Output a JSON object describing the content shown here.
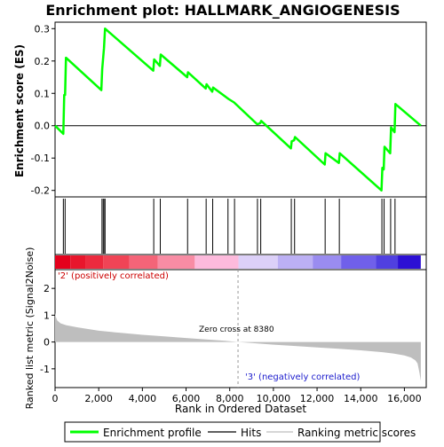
{
  "chart_data": {
    "type": "line",
    "title": "Enrichment plot: HALLMARK_ANGIOGENESIS",
    "es_panel": {
      "ylabel": "Enrichment score (ES)",
      "xlim": [
        0,
        17000
      ],
      "ylim": [
        -0.22,
        0.32
      ],
      "yticks": [
        -0.2,
        -0.1,
        0.0,
        0.1,
        0.2,
        0.3
      ],
      "ytick_labels": [
        "-0.2",
        "-0.1",
        "0.0",
        "0.1",
        "0.2",
        "0.3"
      ],
      "series": [
        {
          "name": "Enrichment profile",
          "color": "#00ff00",
          "x": [
            0,
            380,
            420,
            460,
            500,
            2120,
            2160,
            2240,
            2290,
            4500,
            4540,
            4800,
            4840,
            6050,
            6090,
            6900,
            6940,
            7200,
            7240,
            7900,
            7940,
            8200,
            9250,
            9290,
            9400,
            9440,
            10800,
            10840,
            10950,
            10990,
            12350,
            12390,
            13000,
            13040,
            14950,
            14990,
            15050,
            15090,
            15350,
            15390,
            15550,
            15590,
            16750
          ],
          "y": [
            0.0,
            -0.025,
            0.095,
            0.095,
            0.21,
            0.11,
            0.175,
            0.24,
            0.3,
            0.17,
            0.205,
            0.185,
            0.22,
            0.15,
            0.165,
            0.115,
            0.128,
            0.105,
            0.118,
            0.085,
            0.083,
            0.072,
            0.005,
            0.005,
            0.008,
            0.015,
            -0.07,
            -0.048,
            -0.045,
            -0.035,
            -0.12,
            -0.085,
            -0.115,
            -0.085,
            -0.2,
            -0.13,
            -0.135,
            -0.065,
            -0.085,
            -0.005,
            -0.02,
            0.067,
            0.0
          ]
        }
      ]
    },
    "hits": {
      "name": "Hits",
      "positions": [
        380,
        460,
        2150,
        2210,
        2270,
        2290,
        4520,
        4820,
        6070,
        6920,
        7220,
        7920,
        8220,
        9270,
        9420,
        10820,
        10970,
        12370,
        13020,
        14970,
        15070,
        15370,
        15570
      ]
    },
    "ranked_panel": {
      "ylabel": "Ranked list metric (Signal2Noise)",
      "xlabel": "Rank in Ordered Dataset",
      "xlim": [
        0,
        17000
      ],
      "ylim": [
        -1.7,
        2.7
      ],
      "xticks": [
        0,
        2000,
        4000,
        6000,
        8000,
        10000,
        12000,
        14000,
        16000
      ],
      "xtick_labels": [
        "0",
        "2,000",
        "4,000",
        "6,000",
        "8,000",
        "10,000",
        "12,000",
        "14,000",
        "16,000"
      ],
      "yticks": [
        -1,
        0,
        1,
        2
      ],
      "ytick_labels": [
        "-1",
        "0",
        "1",
        "2"
      ],
      "series": [
        {
          "name": "Ranking metric scores",
          "color": "#bebebe",
          "x": [
            0,
            30,
            100,
            250,
            500,
            1000,
            2000,
            3000,
            4000,
            5000,
            6000,
            7000,
            8000,
            8380,
            9000,
            10000,
            11000,
            12000,
            13000,
            14000,
            15000,
            15500,
            16000,
            16300,
            16500,
            16600,
            16680,
            16750
          ],
          "y": [
            1.1,
            0.95,
            0.8,
            0.7,
            0.63,
            0.55,
            0.42,
            0.34,
            0.27,
            0.21,
            0.15,
            0.09,
            0.03,
            0.0,
            -0.04,
            -0.1,
            -0.15,
            -0.2,
            -0.25,
            -0.31,
            -0.38,
            -0.43,
            -0.5,
            -0.58,
            -0.68,
            -0.8,
            -1.1,
            -1.45
          ]
        }
      ],
      "zero_cross": {
        "rank": 8380,
        "label": "Zero cross at 8380"
      },
      "pos_label": "'2' (positively correlated)",
      "neg_label": "'3' (negatively correlated)"
    },
    "color_bar": {
      "segments": [
        {
          "from": 0,
          "to": 700,
          "color": "#e4001c"
        },
        {
          "from": 700,
          "to": 1400,
          "color": "#e8162c"
        },
        {
          "from": 1400,
          "to": 2200,
          "color": "#ec2a3e"
        },
        {
          "from": 2200,
          "to": 3400,
          "color": "#f04456"
        },
        {
          "from": 3400,
          "to": 4700,
          "color": "#f46478"
        },
        {
          "from": 4700,
          "to": 6400,
          "color": "#f88ca4"
        },
        {
          "from": 6400,
          "to": 8400,
          "color": "#fdbadc"
        },
        {
          "from": 8400,
          "to": 10200,
          "color": "#dcd0f8"
        },
        {
          "from": 10200,
          "to": 11800,
          "color": "#bcb0f4"
        },
        {
          "from": 11800,
          "to": 13100,
          "color": "#9a8cf0"
        },
        {
          "from": 13100,
          "to": 14700,
          "color": "#7060ea"
        },
        {
          "from": 14700,
          "to": 15700,
          "color": "#5040e0"
        },
        {
          "from": 15700,
          "to": 16750,
          "color": "#2c10d4"
        }
      ]
    },
    "legend": {
      "placement": "bottom",
      "entries": [
        {
          "label": "Enrichment profile",
          "color": "#00ff00"
        },
        {
          "label": "Hits",
          "color": "#000000"
        },
        {
          "label": "Ranking metric scores",
          "color": "#bebebe"
        }
      ]
    }
  }
}
